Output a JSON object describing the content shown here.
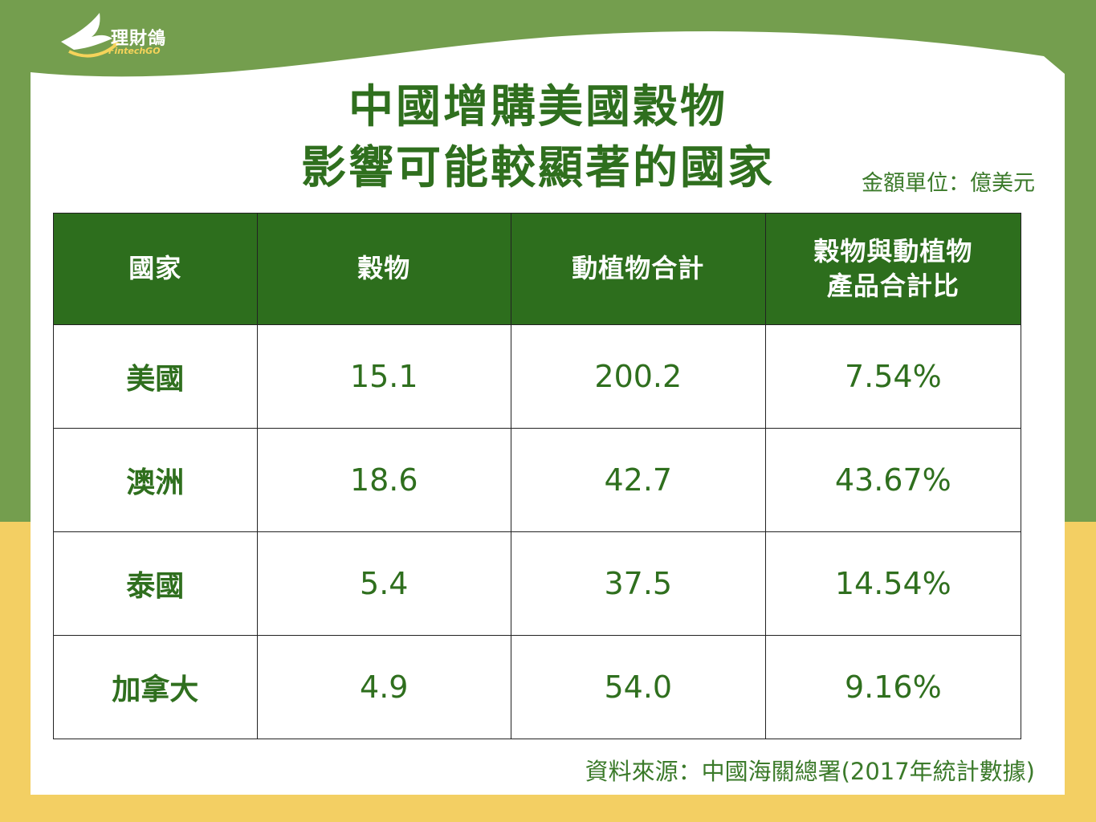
{
  "logo": {
    "name": "理財鴿",
    "sub": "FintechGO",
    "icon": "dove-icon"
  },
  "colors": {
    "top_bg": "#749e4e",
    "bottom_bg": "#f3cf63",
    "header_bg": "#2d6e1d",
    "text_green": "#2f6f1e",
    "card": "#ffffff"
  },
  "title": {
    "line1": "中國增購美國穀物",
    "line2": "影響可能較顯著的國家"
  },
  "unit": "金額單位：億美元",
  "source": "資料來源：中國海關總署(2017年統計數據)",
  "chart_data": {
    "type": "table",
    "columns": [
      "國家",
      "穀物",
      "動植物合計",
      "穀物與動植物產品合計比"
    ],
    "rows": [
      {
        "country": "美國",
        "grain": "15.1",
        "total": "200.2",
        "ratio": "7.54%"
      },
      {
        "country": "澳洲",
        "grain": "18.6",
        "total": "42.7",
        "ratio": "43.67%"
      },
      {
        "country": "泰國",
        "grain": "5.4",
        "total": "37.5",
        "ratio": "14.54%"
      },
      {
        "country": "加拿大",
        "grain": "4.9",
        "total": "54.0",
        "ratio": "9.16%"
      }
    ]
  },
  "header_lines": {
    "col4_line1": "穀物與動植物",
    "col4_line2": "產品合計比"
  }
}
